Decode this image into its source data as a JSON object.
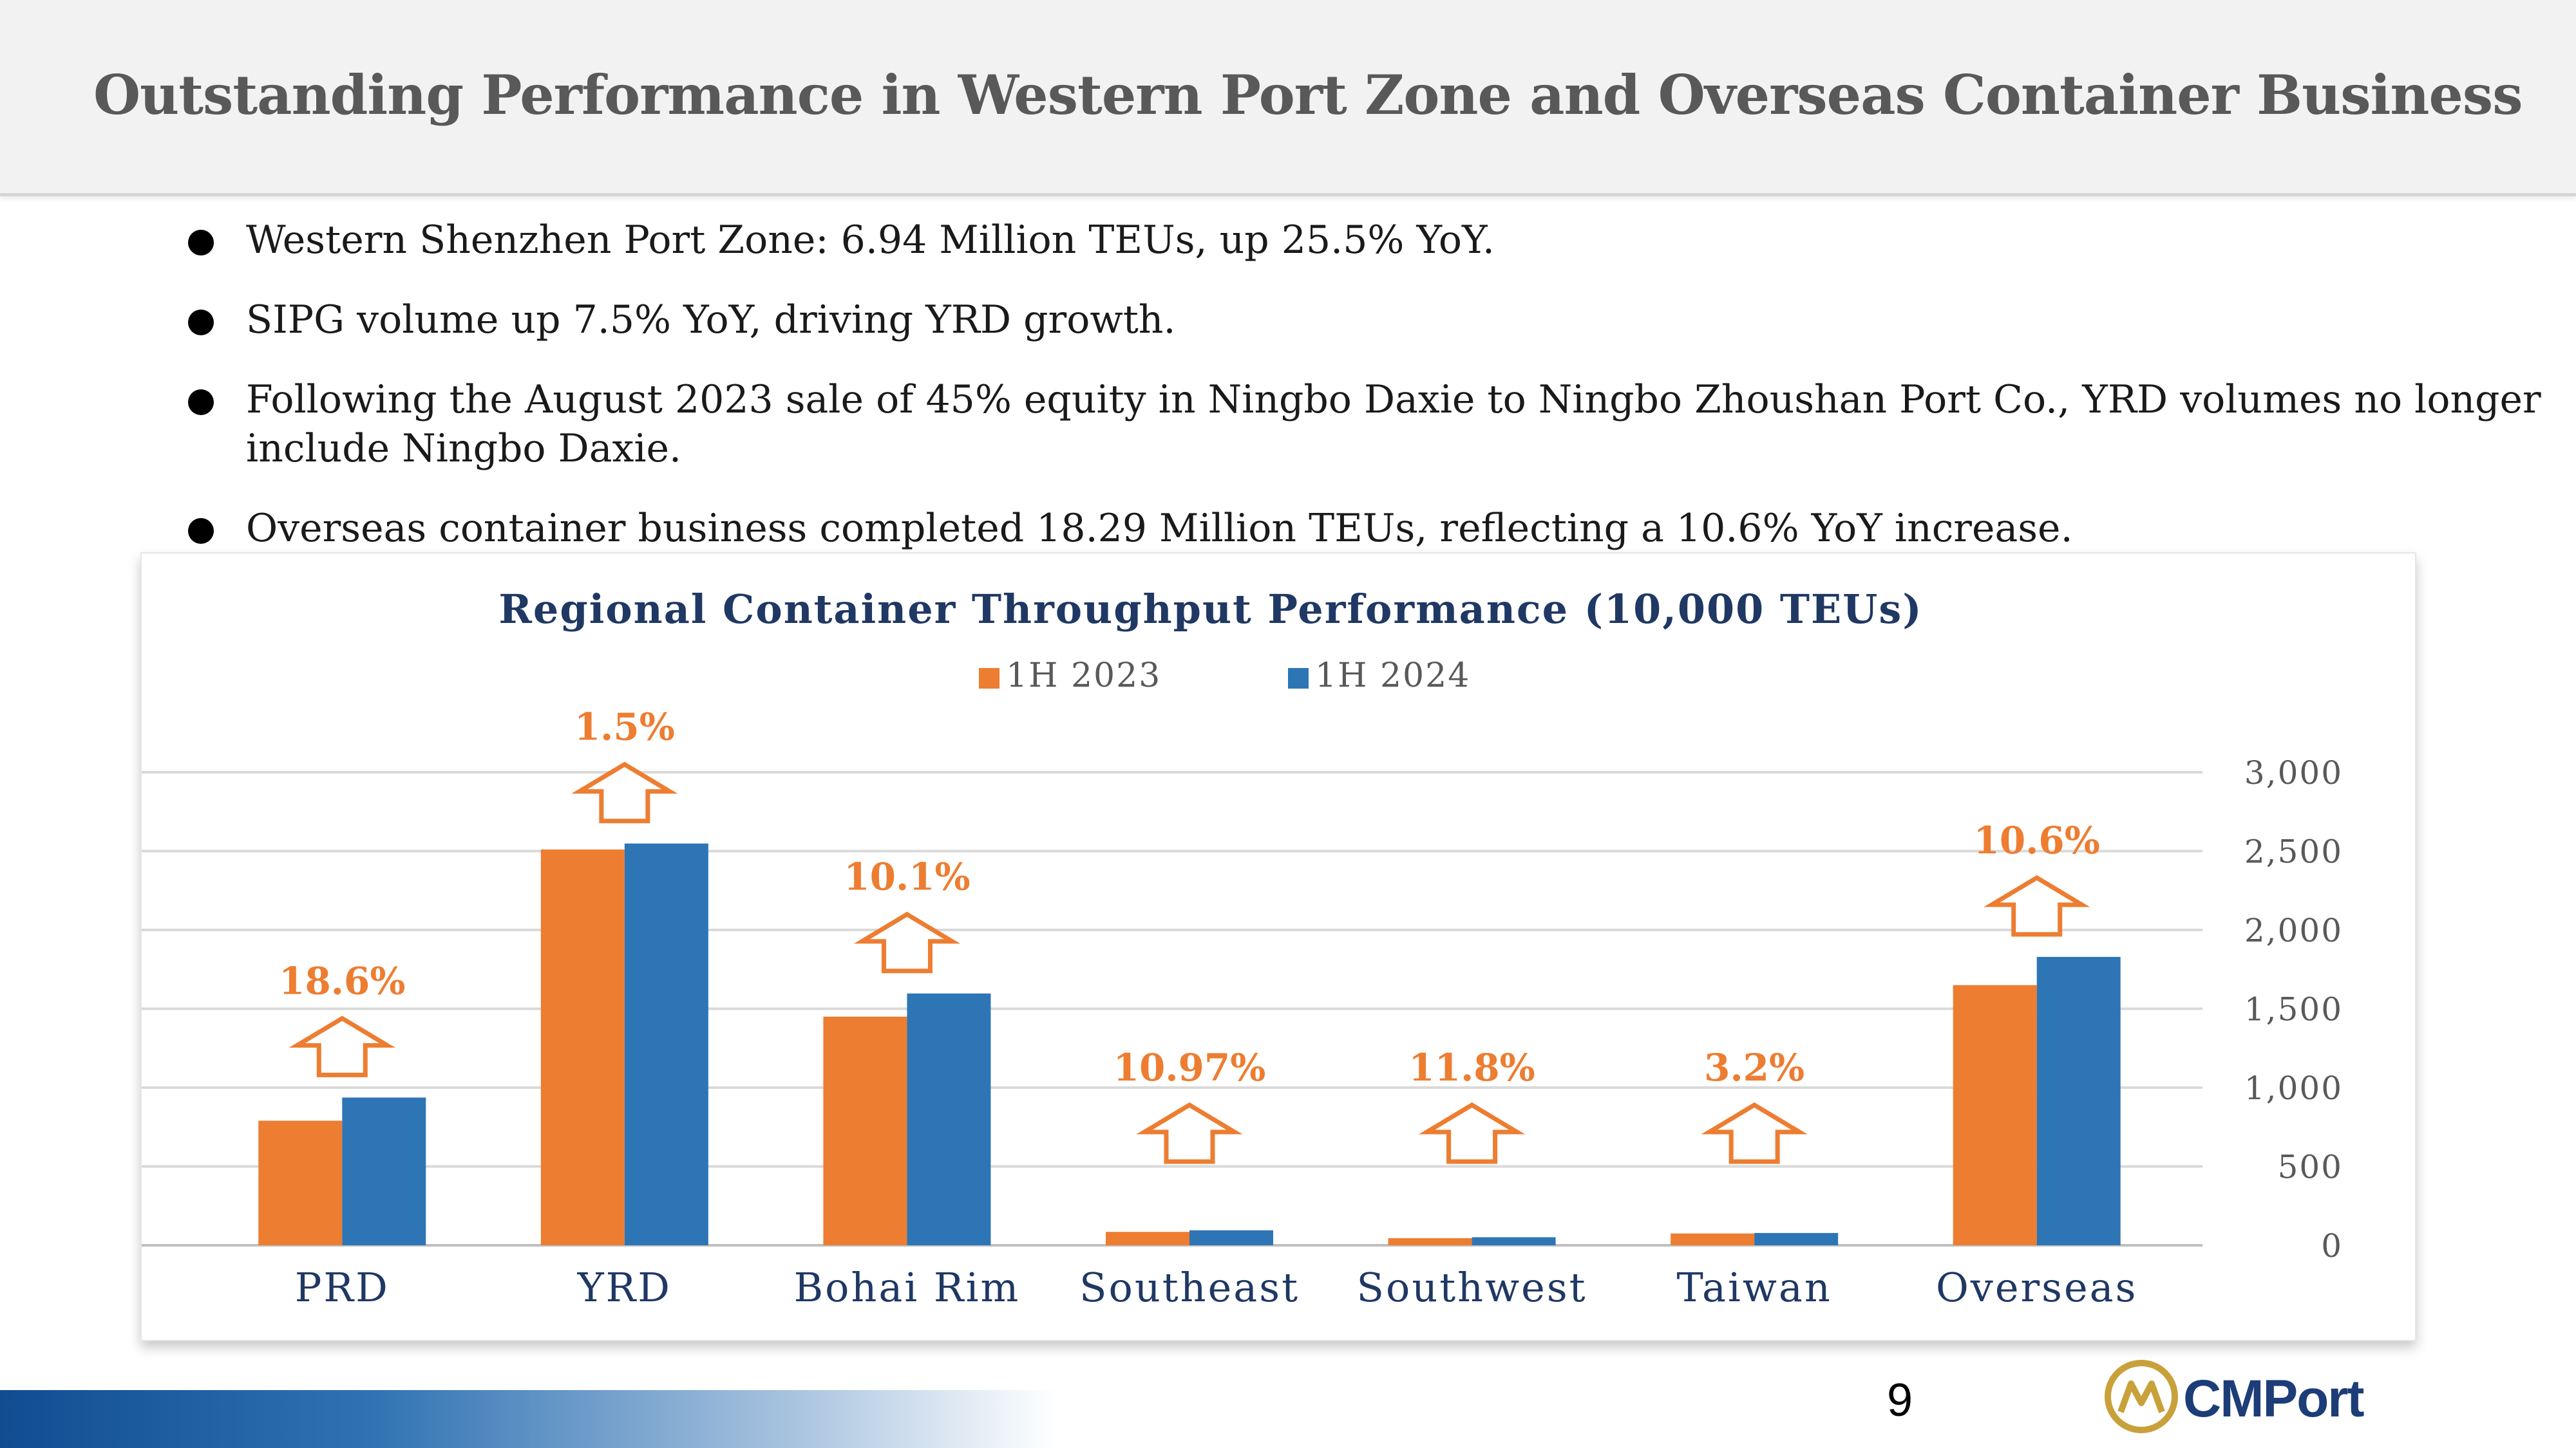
{
  "title": "Outstanding Performance in Western Port Zone and Overseas Container Business",
  "bullets": [
    "Western Shenzhen Port Zone: 6.94 Million TEUs, up 25.5% YoY.",
    "SIPG volume up 7.5% YoY, driving YRD growth.",
    "Following the August 2023 sale of 45% equity in Ningbo Daxie to Ningbo Zhoushan Port Co., YRD volumes no longer include Ningbo Daxie.",
    "Overseas container business completed 18.29 Million TEUs, reflecting a 10.6% YoY increase."
  ],
  "chart_data": {
    "type": "bar",
    "title": "Regional Container Throughput Performance (10,000 TEUs)",
    "categories": [
      "PRD",
      "YRD",
      "Bohai Rim",
      "Southeast",
      "Southwest",
      "Taiwan",
      "Overseas"
    ],
    "series": [
      {
        "name": "1H 2023",
        "color": "#ed7d31",
        "values": [
          790,
          2510,
          1450,
          85,
          45,
          75,
          1650
        ]
      },
      {
        "name": "1H 2024",
        "color": "#2e75b6",
        "values": [
          937,
          2548,
          1597,
          95,
          51,
          78,
          1829
        ]
      }
    ],
    "growth_labels": [
      "18.6%",
      "1.5%",
      "10.1%",
      "10.97%",
      "11.8%",
      "3.2%",
      "10.6%"
    ],
    "y_axis": {
      "position": "right",
      "ylim": [
        0,
        3000
      ],
      "ticks": [
        "0",
        "500",
        "1,000",
        "1,500",
        "2,000",
        "2,500",
        "3,000"
      ]
    },
    "legend_position": "top",
    "grid": true,
    "label_color": "#ed7d31",
    "title_color": "#1f3864"
  },
  "footer": {
    "page_number": "9",
    "logo_text": "CMPort",
    "logo_icon": "cmport-emblem-icon"
  }
}
